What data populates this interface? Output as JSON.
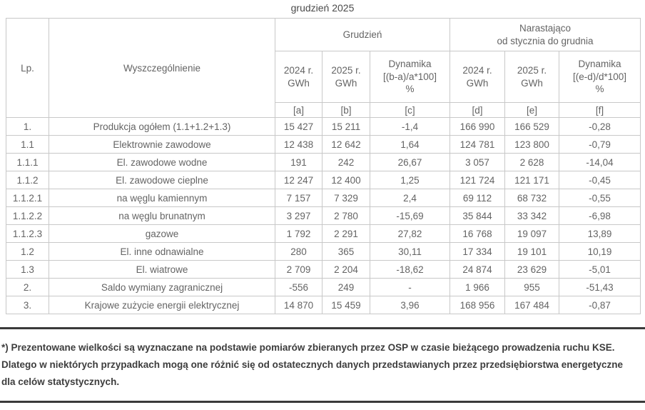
{
  "title": "grudzień 2025",
  "table": {
    "header": {
      "lp": "Lp.",
      "name": "Wyszczególnienie",
      "group_december": "Grudzień",
      "group_cumulative_line1": "Narastająco",
      "group_cumulative_line2": "od stycznia do grudnia",
      "cols": [
        {
          "line1": "2024 r.",
          "line2": "GWh",
          "line3": ""
        },
        {
          "line1": "2025 r.",
          "line2": "GWh",
          "line3": ""
        },
        {
          "line1": "Dynamika",
          "line2": "[(b-a)/a*100]",
          "line3": "%"
        },
        {
          "line1": "2024 r.",
          "line2": "GWh",
          "line3": ""
        },
        {
          "line1": "2025 r.",
          "line2": "GWh",
          "line3": ""
        },
        {
          "line1": "Dynamika",
          "line2": "[(e-d)/d*100]",
          "line3": "%"
        }
      ],
      "letters": [
        "[a]",
        "[b]",
        "[c]",
        "[d]",
        "[e]",
        "[f]"
      ]
    },
    "rows": [
      {
        "lp": "1.",
        "name": "Produkcja ogółem (1.1+1.2+1.3)",
        "a": "15 427",
        "b": "15 211",
        "c": "-1,4",
        "d": "166 990",
        "e": "166 529",
        "f": "-0,28"
      },
      {
        "lp": "1.1",
        "name": "Elektrownie zawodowe",
        "a": "12 438",
        "b": "12 642",
        "c": "1,64",
        "d": "124 781",
        "e": "123 800",
        "f": "-0,79"
      },
      {
        "lp": "1.1.1",
        "name": "El. zawodowe wodne",
        "a": "191",
        "b": "242",
        "c": "26,67",
        "d": "3 057",
        "e": "2 628",
        "f": "-14,04"
      },
      {
        "lp": "1.1.2",
        "name": "El. zawodowe cieplne",
        "a": "12 247",
        "b": "12 400",
        "c": "1,25",
        "d": "121 724",
        "e": "121 171",
        "f": "-0,45"
      },
      {
        "lp": "1.1.2.1",
        "name": "na węglu kamiennym",
        "a": "7 157",
        "b": "7 329",
        "c": "2,4",
        "d": "69 112",
        "e": "68 732",
        "f": "-0,55"
      },
      {
        "lp": "1.1.2.2",
        "name": "na węglu brunatnym",
        "a": "3 297",
        "b": "2 780",
        "c": "-15,69",
        "d": "35 844",
        "e": "33 342",
        "f": "-6,98"
      },
      {
        "lp": "1.1.2.3",
        "name": "gazowe",
        "a": "1 792",
        "b": "2 291",
        "c": "27,82",
        "d": "16 768",
        "e": "19 097",
        "f": "13,89"
      },
      {
        "lp": "1.2",
        "name": "El. inne odnawialne",
        "a": "280",
        "b": "365",
        "c": "30,11",
        "d": "17 334",
        "e": "19 101",
        "f": "10,19"
      },
      {
        "lp": "1.3",
        "name": "El. wiatrowe",
        "a": "2 709",
        "b": "2 204",
        "c": "-18,62",
        "d": "24 874",
        "e": "23 629",
        "f": "-5,01"
      },
      {
        "lp": "2.",
        "name": "Saldo wymiany zagranicznej",
        "a": "-556",
        "b": "249",
        "c": "-",
        "d": "1 966",
        "e": "955",
        "f": "-51,43"
      },
      {
        "lp": "3.",
        "name": "Krajowe zużycie energii elektrycznej",
        "a": "14 870",
        "b": "15 459",
        "c": "3,96",
        "d": "168 956",
        "e": "167 484",
        "f": "-0,87"
      }
    ]
  },
  "footnote": "*) Prezentowane wielkości są wyznaczane na podstawie pomiarów zbieranych przez OSP w czasie bieżącego prowadzenia ruchu KSE. Dlatego w niektórych przypadkach mogą one różnić się od ostatecznych danych przedstawianych przez przedsiębiorstwa energetyczne dla celów statystycznych.",
  "colors": {
    "table_text": "#646464",
    "table_border": "#c8c8c8",
    "footnote_text": "#3d3d3d",
    "rule": "#3a3a3a",
    "background": "#ffffff"
  }
}
